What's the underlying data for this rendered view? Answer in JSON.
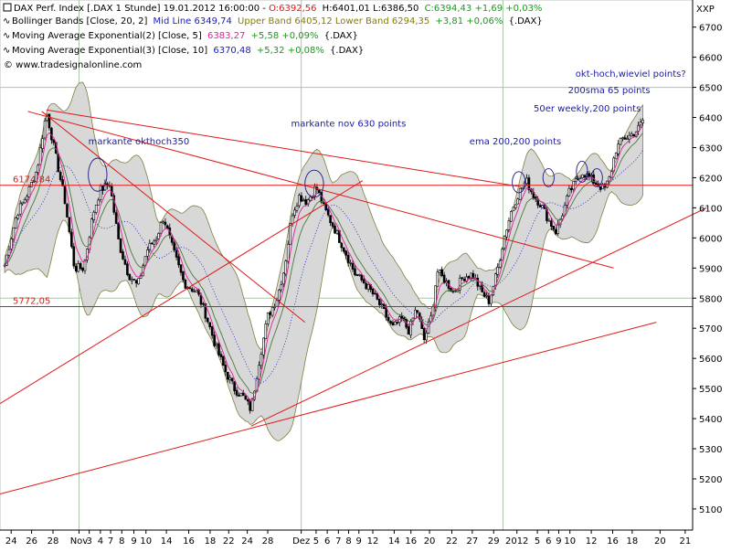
{
  "header": {
    "line1": {
      "icon": "square-icon",
      "instrument": "DAX Perf. Index [.DAX 1 Stunde] 19.01.2012 16:00:00 -",
      "open": "O:6392,56",
      "hl": "H:6401,01 L:6386,50",
      "close": "C:6394,43 +1,69 +0,03%"
    },
    "line2": {
      "icon": "indicator-icon",
      "name": "Bollinger Bands [Close, 20, 2]",
      "mid": "Mid Line 6349,74",
      "bands": "Upper Band 6405,12 Lower Band 6294,35",
      "change": "+3,81 +0,06%",
      "suffix": "{.DAX}"
    },
    "line3": {
      "icon": "indicator-icon",
      "name": "Moving Average Exponential(2) [Close, 5]",
      "value": "6383,27",
      "change": "+5,58 +0,09%",
      "suffix": "{.DAX}"
    },
    "line4": {
      "icon": "indicator-icon",
      "name": "Moving Average Exponential(3) [Close, 10]",
      "value": "6370,48",
      "change": "+5,32 +0,08%",
      "suffix": "{.DAX}"
    },
    "copyright": "© www.tradesignalonline.com"
  },
  "colors": {
    "candle_up": "#ffffff",
    "candle_down": "#000000",
    "bollinger_fill": "#d8d8d8",
    "bollinger_border": "#808040",
    "ema5": "#e0209a",
    "ema10": "#4a7a3a",
    "midline": "#1a1acc",
    "trendline": "#e01818",
    "annotation": "#1a1ab0",
    "header_open": "#e01818",
    "header_close": "#1a9a1a",
    "header_mid": "#1a1acc",
    "header_bands": "#808000",
    "header_ema2": "#e0209a",
    "header_ema3": "#1a1acc"
  },
  "chart_data": {
    "type": "candlestick",
    "ylabel": "XXP",
    "ylim": [
      5030,
      6790
    ],
    "yticks": [
      5100,
      5200,
      5300,
      5400,
      5500,
      5600,
      5700,
      5800,
      5900,
      6000,
      6100,
      6200,
      6300,
      6400,
      6500,
      6600,
      6700
    ],
    "ytick_labels": [
      "5100",
      "5200",
      "5300",
      "5400",
      "5500",
      "5600",
      "5700",
      "5800",
      "5900",
      "6000",
      "6100",
      "6200",
      "6300",
      "6400",
      "6500",
      "6600",
      "6700"
    ],
    "xlim": [
      0,
      745
    ],
    "xticks": [
      {
        "x": 12,
        "label": "24"
      },
      {
        "x": 34,
        "label": "26"
      },
      {
        "x": 57,
        "label": "28"
      },
      {
        "x": 85,
        "label": "Nov"
      },
      {
        "x": 96,
        "label": "3"
      },
      {
        "x": 108,
        "label": "4"
      },
      {
        "x": 119,
        "label": "7"
      },
      {
        "x": 131,
        "label": "8"
      },
      {
        "x": 144,
        "label": "9"
      },
      {
        "x": 157,
        "label": "10"
      },
      {
        "x": 179,
        "label": "14"
      },
      {
        "x": 203,
        "label": "16"
      },
      {
        "x": 226,
        "label": "18"
      },
      {
        "x": 246,
        "label": "22"
      },
      {
        "x": 266,
        "label": "24"
      },
      {
        "x": 288,
        "label": "28"
      },
      {
        "x": 324,
        "label": "Dez"
      },
      {
        "x": 340,
        "label": "5"
      },
      {
        "x": 352,
        "label": "6"
      },
      {
        "x": 364,
        "label": "7"
      },
      {
        "x": 375,
        "label": "8"
      },
      {
        "x": 386,
        "label": "9"
      },
      {
        "x": 401,
        "label": "12"
      },
      {
        "x": 424,
        "label": "14"
      },
      {
        "x": 442,
        "label": "16"
      },
      {
        "x": 462,
        "label": "20"
      },
      {
        "x": 486,
        "label": "22"
      },
      {
        "x": 508,
        "label": "27"
      },
      {
        "x": 531,
        "label": "29"
      },
      {
        "x": 556,
        "label": "2012"
      },
      {
        "x": 578,
        "label": "5"
      },
      {
        "x": 590,
        "label": "6"
      },
      {
        "x": 601,
        "label": "9"
      },
      {
        "x": 613,
        "label": "10"
      },
      {
        "x": 636,
        "label": "12"
      },
      {
        "x": 659,
        "label": "16"
      },
      {
        "x": 680,
        "label": "18"
      },
      {
        "x": 710,
        "label": "20"
      },
      {
        "x": 737,
        "label": "21"
      }
    ],
    "close_anchors": [
      [
        5,
        5910
      ],
      [
        18,
        6080
      ],
      [
        30,
        6150
      ],
      [
        40,
        6230
      ],
      [
        50,
        6420
      ],
      [
        58,
        6300
      ],
      [
        70,
        6120
      ],
      [
        80,
        5900
      ],
      [
        90,
        5900
      ],
      [
        100,
        6080
      ],
      [
        108,
        6160
      ],
      [
        118,
        6180
      ],
      [
        128,
        5980
      ],
      [
        138,
        5880
      ],
      [
        148,
        5840
      ],
      [
        158,
        5960
      ],
      [
        168,
        6000
      ],
      [
        176,
        6070
      ],
      [
        186,
        5960
      ],
      [
        198,
        5850
      ],
      [
        212,
        5820
      ],
      [
        222,
        5740
      ],
      [
        232,
        5640
      ],
      [
        242,
        5560
      ],
      [
        252,
        5500
      ],
      [
        262,
        5470
      ],
      [
        270,
        5430
      ],
      [
        278,
        5580
      ],
      [
        288,
        5740
      ],
      [
        298,
        5800
      ],
      [
        306,
        5900
      ],
      [
        314,
        6080
      ],
      [
        322,
        6140
      ],
      [
        330,
        6120
      ],
      [
        340,
        6170
      ],
      [
        350,
        6090
      ],
      [
        360,
        6030
      ],
      [
        372,
        5950
      ],
      [
        382,
        5880
      ],
      [
        392,
        5850
      ],
      [
        402,
        5810
      ],
      [
        412,
        5760
      ],
      [
        422,
        5700
      ],
      [
        432,
        5730
      ],
      [
        440,
        5690
      ],
      [
        448,
        5770
      ],
      [
        456,
        5660
      ],
      [
        464,
        5740
      ],
      [
        470,
        5890
      ],
      [
        478,
        5860
      ],
      [
        488,
        5820
      ],
      [
        498,
        5870
      ],
      [
        508,
        5880
      ],
      [
        518,
        5820
      ],
      [
        526,
        5790
      ],
      [
        534,
        5880
      ],
      [
        542,
        6000
      ],
      [
        550,
        6090
      ],
      [
        558,
        6150
      ],
      [
        566,
        6190
      ],
      [
        574,
        6140
      ],
      [
        582,
        6110
      ],
      [
        590,
        6060
      ],
      [
        598,
        6020
      ],
      [
        606,
        6090
      ],
      [
        612,
        6150
      ],
      [
        618,
        6180
      ],
      [
        626,
        6220
      ],
      [
        634,
        6200
      ],
      [
        642,
        6180
      ],
      [
        650,
        6160
      ],
      [
        656,
        6200
      ],
      [
        662,
        6290
      ],
      [
        670,
        6330
      ],
      [
        678,
        6340
      ],
      [
        686,
        6360
      ],
      [
        692,
        6394
      ]
    ],
    "horizontal_levels": [
      {
        "value": 6174.84,
        "label": "6174,84"
      },
      {
        "value": 5772.05,
        "label": "5772,05"
      }
    ],
    "trendlines": [
      {
        "from": [
          30,
          6420
        ],
        "to": [
          660,
          5900
        ]
      },
      {
        "from": [
          45,
          6420
        ],
        "to": [
          328,
          5720
        ]
      },
      {
        "from": [
          0,
          5450
        ],
        "to": [
          390,
          6190
        ]
      },
      {
        "from": [
          50,
          6425
        ],
        "to": [
          560,
          6170
        ]
      },
      {
        "from": [
          270,
          5375
        ],
        "to": [
          760,
          6100
        ]
      },
      {
        "from": [
          0,
          5150
        ],
        "to": [
          706,
          5720
        ]
      }
    ],
    "highlight_ellipses": [
      {
        "cx": 105,
        "cy": 6210,
        "rx": 10,
        "ry": 55
      },
      {
        "cx": 338,
        "cy": 6180,
        "rx": 10,
        "ry": 45
      },
      {
        "cx": 558,
        "cy": 6185,
        "rx": 7,
        "ry": 35
      },
      {
        "cx": 590,
        "cy": 6200,
        "rx": 6,
        "ry": 30
      },
      {
        "cx": 626,
        "cy": 6220,
        "rx": 6,
        "ry": 35
      },
      {
        "cx": 642,
        "cy": 6200,
        "rx": 6,
        "ry": 30
      }
    ],
    "annotations": [
      {
        "text": "markante okthoch350",
        "x": 95,
        "y": 6310
      },
      {
        "text": "markante nov 630 points",
        "x": 313,
        "y": 6370
      },
      {
        "text": "ema 200,200 points",
        "x": 505,
        "y": 6310
      },
      {
        "text": "50er weekly,200 points",
        "x": 574,
        "y": 6420
      },
      {
        "text": "200sma 65 points",
        "x": 611,
        "y": 6480
      },
      {
        "text": "okt-hoch,wieviel points?",
        "x": 619,
        "y": 6535
      }
    ]
  }
}
